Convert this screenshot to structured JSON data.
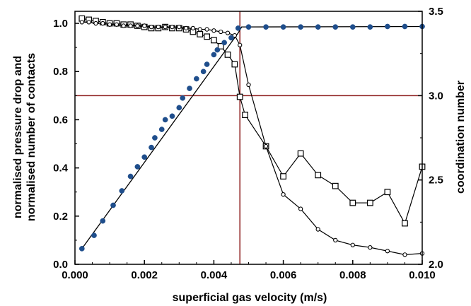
{
  "chart_data": {
    "type": "line",
    "xlabel": "superficial gas velocity (m/s)",
    "ylabel_line1": "normalised pressure drop and",
    "ylabel_line2": "normalised number of contacts",
    "y2label": "coordination number",
    "xlim": [
      0.0,
      0.01
    ],
    "ylim": [
      0.0,
      1.05
    ],
    "y2lim": [
      2.0,
      3.5
    ],
    "x_ticks": [
      "0.000",
      "0.002",
      "0.004",
      "0.006",
      "0.008",
      "0.010"
    ],
    "y_ticks": [
      "0.0",
      "0.2",
      "0.4",
      "0.6",
      "0.8",
      "1.0"
    ],
    "y2_ticks": [
      "2.0",
      "2.5",
      "3.0",
      "3.5"
    ],
    "grid": false,
    "reference_lines": {
      "vertical_x": 0.00475,
      "horizontal_y2": 3.0,
      "color": "#8b1a1a"
    },
    "fit_line": {
      "x": [
        0.0002,
        0.0047,
        0.0048,
        0.01
      ],
      "y": [
        0.065,
        0.96,
        0.985,
        0.987
      ]
    },
    "series": [
      {
        "marker": "filled-circle",
        "color": "#1f4e8c",
        "axis": "left",
        "x": [
          0.0002,
          0.00055,
          0.0008,
          0.0011,
          0.00135,
          0.0016,
          0.0018,
          0.002,
          0.0022,
          0.0023,
          0.0025,
          0.0026,
          0.0028,
          0.003,
          0.0031,
          0.0033,
          0.0035,
          0.0037,
          0.0038,
          0.004,
          0.0041,
          0.0043,
          0.0045,
          0.0047,
          0.005,
          0.0055,
          0.006,
          0.0065,
          0.007,
          0.0075,
          0.008,
          0.0085,
          0.009,
          0.0095,
          0.01
        ],
        "y": [
          0.065,
          0.12,
          0.18,
          0.245,
          0.305,
          0.365,
          0.405,
          0.445,
          0.485,
          0.525,
          0.56,
          0.6,
          0.615,
          0.65,
          0.69,
          0.73,
          0.77,
          0.8,
          0.83,
          0.87,
          0.89,
          0.92,
          0.94,
          0.98,
          0.985,
          0.985,
          0.985,
          0.985,
          0.985,
          0.985,
          0.985,
          0.985,
          0.987,
          0.987,
          0.987
        ]
      },
      {
        "marker": "open-square",
        "color": "#000000",
        "axis": "left",
        "x": [
          0.0002,
          0.0004,
          0.0006,
          0.0008,
          0.001,
          0.0012,
          0.0014,
          0.0016,
          0.0018,
          0.002,
          0.0022,
          0.0024,
          0.0026,
          0.0028,
          0.003,
          0.0032,
          0.0034,
          0.0036,
          0.0038,
          0.004,
          0.0042,
          0.0044,
          0.0046,
          0.00475,
          0.0049,
          0.0055,
          0.006,
          0.0065,
          0.007,
          0.0075,
          0.008,
          0.0085,
          0.009,
          0.0095,
          0.01
        ],
        "y": [
          1.02,
          1.015,
          1.01,
          1.005,
          1.0,
          1.0,
          0.995,
          0.995,
          0.99,
          0.985,
          0.98,
          0.98,
          0.985,
          0.98,
          0.98,
          0.975,
          0.965,
          0.955,
          0.945,
          0.93,
          0.905,
          0.87,
          0.83,
          0.695,
          0.62,
          0.49,
          0.365,
          0.46,
          0.37,
          0.325,
          0.255,
          0.255,
          0.3,
          0.17,
          0.405
        ]
      },
      {
        "marker": "open-circle",
        "color": "#000000",
        "axis": "left",
        "x": [
          0.0002,
          0.0004,
          0.0006,
          0.0008,
          0.001,
          0.0012,
          0.0014,
          0.0016,
          0.0018,
          0.002,
          0.0022,
          0.0024,
          0.0026,
          0.0028,
          0.003,
          0.0032,
          0.0034,
          0.0036,
          0.0038,
          0.004,
          0.0042,
          0.0044,
          0.0046,
          0.00475,
          0.005,
          0.0055,
          0.006,
          0.0065,
          0.007,
          0.0075,
          0.008,
          0.0085,
          0.009,
          0.0095,
          0.01
        ],
        "y": [
          1.005,
          1.005,
          1.0,
          1.0,
          0.995,
          0.995,
          0.99,
          0.99,
          0.99,
          0.99,
          0.985,
          0.985,
          0.985,
          0.985,
          0.985,
          0.98,
          0.98,
          0.975,
          0.975,
          0.97,
          0.965,
          0.96,
          0.95,
          0.91,
          0.745,
          0.49,
          0.29,
          0.23,
          0.145,
          0.1,
          0.08,
          0.07,
          0.055,
          0.04,
          0.045
        ]
      }
    ]
  }
}
